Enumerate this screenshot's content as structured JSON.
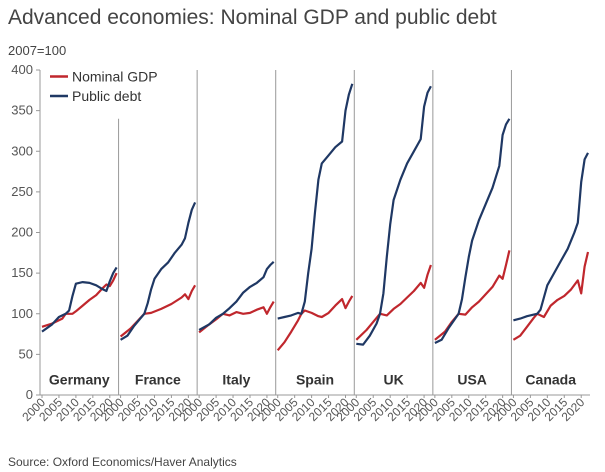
{
  "title": "Advanced economies: Nominal GDP and public debt",
  "unit": "2007=100",
  "source": "Source: Oxford Economics/Haver Analytics",
  "colors": {
    "gdp": "#c0272d",
    "debt": "#1f3864",
    "axis": "#999999",
    "text": "#333333"
  },
  "chart_data": {
    "type": "line",
    "ylim": [
      0,
      400
    ],
    "yticks": [
      0,
      50,
      100,
      150,
      200,
      250,
      300,
      350,
      400
    ],
    "xlim": [
      2000,
      2022
    ],
    "xticks": [
      "2000",
      "2005",
      "2010",
      "2015",
      "2020"
    ],
    "legend": {
      "placement": "top-left",
      "entries": [
        "Nominal GDP",
        "Public debt"
      ]
    },
    "series_names": {
      "gdp": "Nominal GDP",
      "debt": "Public debt"
    },
    "panels": [
      {
        "label": "Germany",
        "gdp": [
          [
            2000,
            84
          ],
          [
            2003,
            88
          ],
          [
            2006,
            94
          ],
          [
            2007,
            100
          ],
          [
            2009,
            100
          ],
          [
            2010,
            103
          ],
          [
            2012,
            110
          ],
          [
            2014,
            117
          ],
          [
            2016,
            123
          ],
          [
            2018,
            132
          ],
          [
            2019,
            136
          ],
          [
            2020,
            134
          ],
          [
            2021,
            141
          ],
          [
            2022,
            150
          ]
        ],
        "debt": [
          [
            2000,
            78
          ],
          [
            2003,
            87
          ],
          [
            2005,
            96
          ],
          [
            2007,
            100
          ],
          [
            2008,
            104
          ],
          [
            2009,
            122
          ],
          [
            2010,
            137
          ],
          [
            2012,
            139
          ],
          [
            2014,
            138
          ],
          [
            2016,
            135
          ],
          [
            2018,
            130
          ],
          [
            2019,
            128
          ],
          [
            2020,
            140
          ],
          [
            2021,
            150
          ],
          [
            2022,
            157
          ]
        ]
      },
      {
        "label": "France",
        "gdp": [
          [
            2000,
            72
          ],
          [
            2003,
            82
          ],
          [
            2005,
            91
          ],
          [
            2007,
            100
          ],
          [
            2009,
            101
          ],
          [
            2012,
            106
          ],
          [
            2015,
            112
          ],
          [
            2018,
            120
          ],
          [
            2019,
            124
          ],
          [
            2020,
            118
          ],
          [
            2021,
            128
          ],
          [
            2022,
            135
          ]
        ],
        "debt": [
          [
            2000,
            68
          ],
          [
            2002,
            73
          ],
          [
            2004,
            85
          ],
          [
            2006,
            95
          ],
          [
            2007,
            100
          ],
          [
            2008,
            113
          ],
          [
            2009,
            130
          ],
          [
            2010,
            143
          ],
          [
            2012,
            155
          ],
          [
            2014,
            163
          ],
          [
            2016,
            175
          ],
          [
            2018,
            185
          ],
          [
            2019,
            193
          ],
          [
            2020,
            212
          ],
          [
            2021,
            228
          ],
          [
            2022,
            237
          ]
        ]
      },
      {
        "label": "Italy",
        "gdp": [
          [
            2000,
            77
          ],
          [
            2003,
            87
          ],
          [
            2005,
            93
          ],
          [
            2007,
            100
          ],
          [
            2009,
            98
          ],
          [
            2011,
            102
          ],
          [
            2013,
            100
          ],
          [
            2015,
            101
          ],
          [
            2017,
            105
          ],
          [
            2019,
            108
          ],
          [
            2020,
            100
          ],
          [
            2021,
            108
          ],
          [
            2022,
            115
          ]
        ],
        "debt": [
          [
            2000,
            80
          ],
          [
            2003,
            87
          ],
          [
            2005,
            95
          ],
          [
            2007,
            100
          ],
          [
            2009,
            107
          ],
          [
            2011,
            115
          ],
          [
            2013,
            126
          ],
          [
            2015,
            133
          ],
          [
            2017,
            138
          ],
          [
            2019,
            145
          ],
          [
            2020,
            155
          ],
          [
            2021,
            160
          ],
          [
            2022,
            164
          ]
        ]
      },
      {
        "label": "Spain",
        "gdp": [
          [
            2000,
            55
          ],
          [
            2002,
            65
          ],
          [
            2004,
            78
          ],
          [
            2006,
            92
          ],
          [
            2007,
            100
          ],
          [
            2008,
            104
          ],
          [
            2010,
            101
          ],
          [
            2012,
            97
          ],
          [
            2013,
            96
          ],
          [
            2015,
            101
          ],
          [
            2017,
            110
          ],
          [
            2019,
            118
          ],
          [
            2020,
            107
          ],
          [
            2021,
            115
          ],
          [
            2022,
            122
          ]
        ],
        "debt": [
          [
            2000,
            94
          ],
          [
            2002,
            96
          ],
          [
            2004,
            98
          ],
          [
            2006,
            101
          ],
          [
            2007,
            100
          ],
          [
            2008,
            115
          ],
          [
            2009,
            150
          ],
          [
            2010,
            180
          ],
          [
            2011,
            225
          ],
          [
            2012,
            265
          ],
          [
            2013,
            285
          ],
          [
            2015,
            295
          ],
          [
            2017,
            305
          ],
          [
            2019,
            312
          ],
          [
            2020,
            350
          ],
          [
            2021,
            370
          ],
          [
            2022,
            383
          ]
        ]
      },
      {
        "label": "UK",
        "gdp": [
          [
            2000,
            68
          ],
          [
            2003,
            80
          ],
          [
            2005,
            90
          ],
          [
            2007,
            100
          ],
          [
            2009,
            98
          ],
          [
            2011,
            106
          ],
          [
            2013,
            112
          ],
          [
            2015,
            120
          ],
          [
            2017,
            128
          ],
          [
            2019,
            138
          ],
          [
            2020,
            132
          ],
          [
            2021,
            148
          ],
          [
            2022,
            160
          ]
        ],
        "debt": [
          [
            2000,
            63
          ],
          [
            2002,
            62
          ],
          [
            2004,
            73
          ],
          [
            2006,
            88
          ],
          [
            2007,
            100
          ],
          [
            2008,
            125
          ],
          [
            2009,
            170
          ],
          [
            2010,
            210
          ],
          [
            2011,
            240
          ],
          [
            2013,
            265
          ],
          [
            2015,
            285
          ],
          [
            2017,
            300
          ],
          [
            2019,
            315
          ],
          [
            2020,
            355
          ],
          [
            2021,
            372
          ],
          [
            2022,
            380
          ]
        ]
      },
      {
        "label": "USA",
        "gdp": [
          [
            2000,
            68
          ],
          [
            2003,
            78
          ],
          [
            2005,
            90
          ],
          [
            2007,
            100
          ],
          [
            2009,
            99
          ],
          [
            2011,
            108
          ],
          [
            2013,
            115
          ],
          [
            2015,
            124
          ],
          [
            2017,
            133
          ],
          [
            2019,
            147
          ],
          [
            2020,
            143
          ],
          [
            2021,
            160
          ],
          [
            2022,
            178
          ]
        ],
        "debt": [
          [
            2000,
            64
          ],
          [
            2002,
            68
          ],
          [
            2004,
            82
          ],
          [
            2006,
            94
          ],
          [
            2007,
            100
          ],
          [
            2008,
            118
          ],
          [
            2009,
            145
          ],
          [
            2010,
            170
          ],
          [
            2011,
            190
          ],
          [
            2013,
            215
          ],
          [
            2015,
            235
          ],
          [
            2017,
            255
          ],
          [
            2019,
            282
          ],
          [
            2020,
            320
          ],
          [
            2021,
            333
          ],
          [
            2022,
            340
          ]
        ]
      },
      {
        "label": "Canada",
        "gdp": [
          [
            2000,
            68
          ],
          [
            2002,
            73
          ],
          [
            2004,
            84
          ],
          [
            2006,
            95
          ],
          [
            2007,
            100
          ],
          [
            2009,
            96
          ],
          [
            2011,
            110
          ],
          [
            2013,
            117
          ],
          [
            2015,
            122
          ],
          [
            2017,
            130
          ],
          [
            2019,
            141
          ],
          [
            2020,
            125
          ],
          [
            2021,
            158
          ],
          [
            2022,
            176
          ]
        ],
        "debt": [
          [
            2000,
            92
          ],
          [
            2002,
            94
          ],
          [
            2004,
            97
          ],
          [
            2006,
            99
          ],
          [
            2007,
            100
          ],
          [
            2008,
            105
          ],
          [
            2009,
            120
          ],
          [
            2010,
            135
          ],
          [
            2012,
            150
          ],
          [
            2014,
            165
          ],
          [
            2016,
            180
          ],
          [
            2018,
            200
          ],
          [
            2019,
            212
          ],
          [
            2020,
            262
          ],
          [
            2021,
            290
          ],
          [
            2022,
            298
          ]
        ]
      }
    ]
  }
}
